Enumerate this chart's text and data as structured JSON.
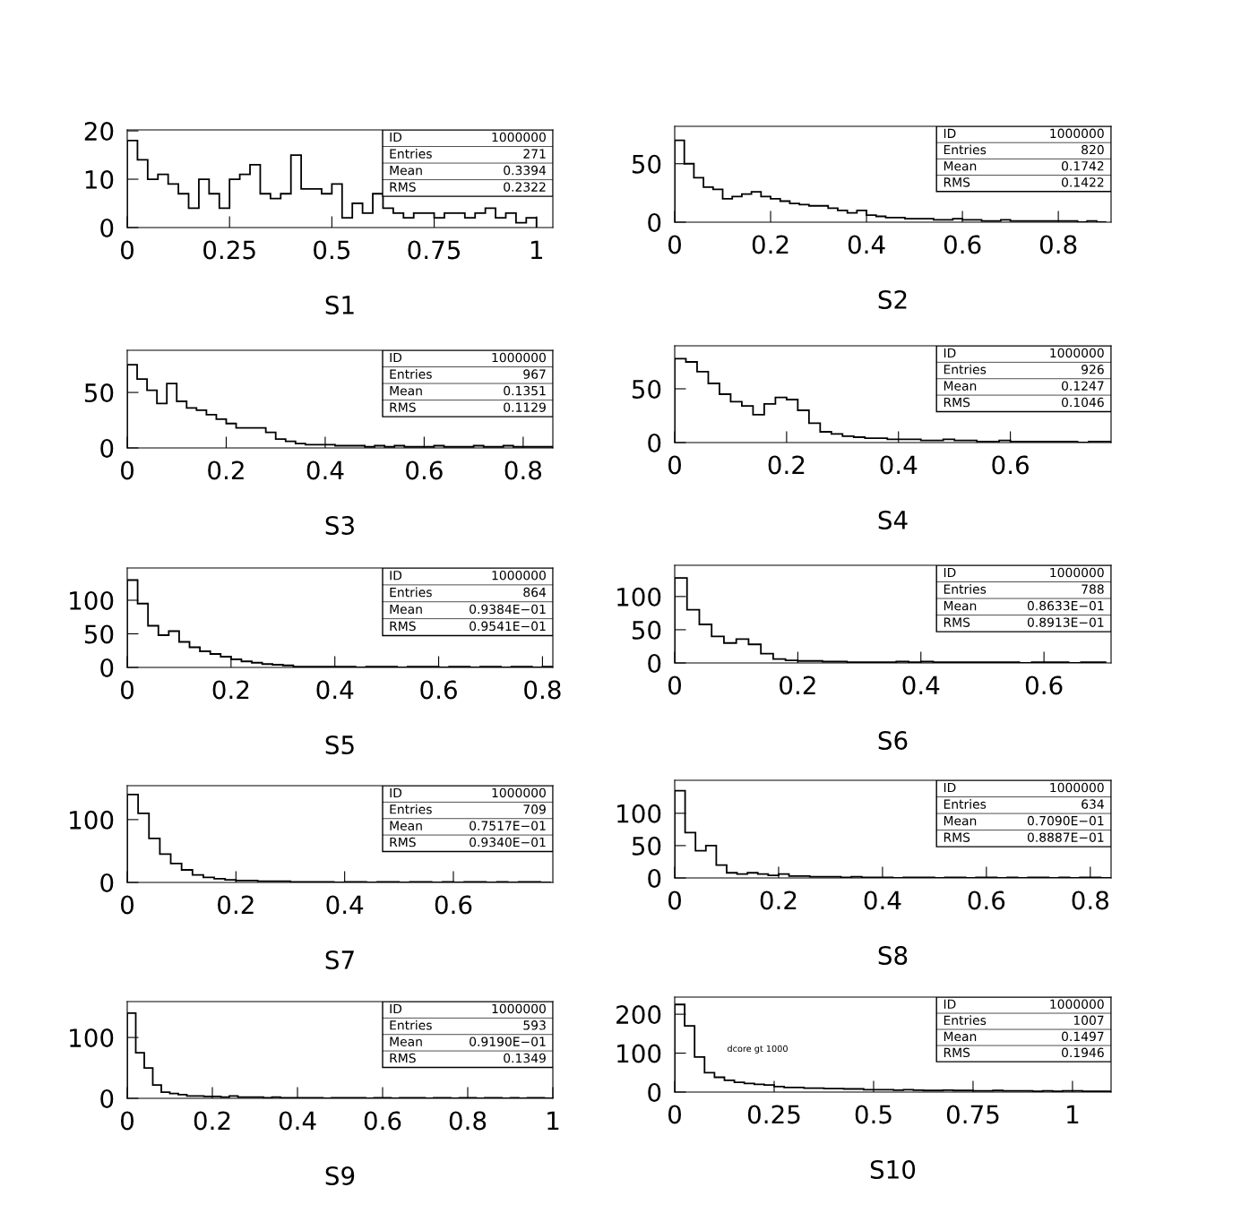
{
  "chart_data": [
    {
      "type": "histogram",
      "xlabel": "S1",
      "color": "#000000",
      "xlim": [
        0,
        1.04
      ],
      "ylim": [
        0,
        20.2
      ],
      "xticks": [
        0,
        0.25,
        0.5,
        0.75,
        1
      ],
      "yticks": [
        0,
        10,
        20
      ],
      "grid": false,
      "annotations": [
        "ID",
        "1000000",
        "Entries",
        "271",
        "Mean",
        "0.3394",
        "RMS",
        "0.2322"
      ],
      "bins": [
        0,
        0.025,
        0.05,
        0.075,
        0.1,
        0.125,
        0.15,
        0.175,
        0.2,
        0.225,
        0.25,
        0.275,
        0.3,
        0.325,
        0.35,
        0.375,
        0.4,
        0.425,
        0.45,
        0.475,
        0.5,
        0.525,
        0.55,
        0.575,
        0.6,
        0.625,
        0.65,
        0.675,
        0.7,
        0.725,
        0.75,
        0.775,
        0.8,
        0.825,
        0.85,
        0.875,
        0.9,
        0.925,
        0.95,
        0.975,
        1.0
      ],
      "values": [
        18,
        14,
        10,
        11,
        9,
        7,
        4,
        10,
        7,
        4,
        10,
        11,
        13,
        7,
        6,
        7,
        15,
        8,
        8,
        7,
        9,
        2,
        5,
        3,
        7,
        4,
        3,
        2,
        3,
        3,
        2,
        3,
        3,
        2,
        3,
        4,
        2,
        3,
        1,
        2
      ]
    },
    {
      "type": "histogram",
      "xlabel": "S2",
      "color": "#000000",
      "xlim": [
        0,
        0.91
      ],
      "ylim": [
        0,
        82
      ],
      "xticks": [
        0,
        0.2,
        0.4,
        0.6,
        0.8
      ],
      "yticks": [
        0,
        50
      ],
      "grid": false,
      "annotations": [
        "ID",
        "1000000",
        "Entries",
        "820",
        "Mean",
        "0.1742",
        "RMS",
        "0.1422"
      ],
      "bins": [
        0,
        0.02,
        0.04,
        0.06,
        0.08,
        0.1,
        0.12,
        0.14,
        0.16,
        0.18,
        0.2,
        0.22,
        0.24,
        0.26,
        0.28,
        0.3,
        0.32,
        0.34,
        0.36,
        0.38,
        0.4,
        0.42,
        0.44,
        0.46,
        0.48,
        0.5,
        0.52,
        0.54,
        0.56,
        0.58,
        0.6,
        0.62,
        0.64,
        0.66,
        0.68,
        0.7,
        0.72,
        0.74,
        0.76,
        0.78,
        0.8,
        0.82,
        0.84,
        0.86,
        0.88,
        0.9
      ],
      "values": [
        70,
        50,
        38,
        30,
        28,
        20,
        22,
        24,
        26,
        22,
        20,
        18,
        16,
        15,
        14,
        14,
        12,
        10,
        8,
        10,
        6,
        5,
        4,
        4,
        3,
        3,
        3,
        2,
        2,
        3,
        2,
        2,
        1,
        1,
        2,
        1,
        1,
        1,
        1,
        1,
        1,
        1,
        0,
        1,
        0
      ]
    },
    {
      "type": "histogram",
      "xlabel": "S3",
      "color": "#000000",
      "xlim": [
        0,
        0.86
      ],
      "ylim": [
        0,
        88
      ],
      "xticks": [
        0,
        0.2,
        0.4,
        0.6,
        0.8
      ],
      "yticks": [
        0,
        50
      ],
      "grid": false,
      "annotations": [
        "ID",
        "1000000",
        "Entries",
        "967",
        "Mean",
        "0.1351",
        "RMS",
        "0.1129"
      ],
      "bins": [
        0,
        0.02,
        0.04,
        0.06,
        0.08,
        0.1,
        0.12,
        0.14,
        0.16,
        0.18,
        0.2,
        0.22,
        0.24,
        0.26,
        0.28,
        0.3,
        0.32,
        0.34,
        0.36,
        0.38,
        0.4,
        0.42,
        0.44,
        0.46,
        0.48,
        0.5,
        0.52,
        0.54,
        0.56,
        0.58,
        0.6,
        0.62,
        0.64,
        0.66,
        0.68,
        0.7,
        0.72,
        0.74,
        0.76,
        0.78,
        0.8,
        0.82,
        0.84,
        0.86
      ],
      "values": [
        75,
        62,
        52,
        40,
        58,
        42,
        36,
        34,
        30,
        26,
        22,
        18,
        18,
        18,
        14,
        8,
        6,
        4,
        3,
        3,
        3,
        2,
        2,
        2,
        1,
        2,
        1,
        2,
        1,
        1,
        1,
        2,
        1,
        1,
        1,
        2,
        1,
        1,
        2,
        1,
        1,
        1,
        1
      ]
    },
    {
      "type": "histogram",
      "xlabel": "S4",
      "color": "#000000",
      "xlim": [
        0,
        0.78
      ],
      "ylim": [
        0,
        90
      ],
      "xticks": [
        0,
        0.2,
        0.4,
        0.6
      ],
      "yticks": [
        0,
        50
      ],
      "grid": false,
      "annotations": [
        "ID",
        "1000000",
        "Entries",
        "926",
        "Mean",
        "0.1247",
        "RMS",
        "0.1046"
      ],
      "bins": [
        0,
        0.02,
        0.04,
        0.06,
        0.08,
        0.1,
        0.12,
        0.14,
        0.16,
        0.18,
        0.2,
        0.22,
        0.24,
        0.26,
        0.28,
        0.3,
        0.32,
        0.34,
        0.36,
        0.38,
        0.4,
        0.42,
        0.44,
        0.46,
        0.48,
        0.5,
        0.52,
        0.54,
        0.56,
        0.58,
        0.6,
        0.62,
        0.64,
        0.66,
        0.68,
        0.7,
        0.72,
        0.74,
        0.76,
        0.78
      ],
      "values": [
        78,
        75,
        66,
        55,
        45,
        38,
        34,
        26,
        36,
        42,
        40,
        30,
        18,
        10,
        8,
        6,
        5,
        4,
        4,
        3,
        3,
        3,
        2,
        2,
        3,
        2,
        2,
        1,
        1,
        2,
        1,
        1,
        1,
        1,
        1,
        1,
        0,
        1,
        1
      ]
    },
    {
      "type": "histogram",
      "xlabel": "S5",
      "color": "#000000",
      "xlim": [
        0,
        0.82
      ],
      "ylim": [
        0,
        148
      ],
      "xticks": [
        0,
        0.2,
        0.4,
        0.6,
        0.8
      ],
      "yticks": [
        0,
        50,
        100
      ],
      "grid": false,
      "annotations": [
        "ID",
        "1000000",
        "Entries",
        "864",
        "Mean",
        "0.9384E−01",
        "RMS",
        "0.9541E−01"
      ],
      "bins": [
        0,
        0.02,
        0.04,
        0.06,
        0.08,
        0.1,
        0.12,
        0.14,
        0.16,
        0.18,
        0.2,
        0.22,
        0.24,
        0.26,
        0.28,
        0.3,
        0.32,
        0.34,
        0.36,
        0.38,
        0.4,
        0.42,
        0.44,
        0.46,
        0.48,
        0.5,
        0.52,
        0.54,
        0.56,
        0.58,
        0.6,
        0.62,
        0.64,
        0.66,
        0.68,
        0.7,
        0.72,
        0.74,
        0.76,
        0.78,
        0.8,
        0.82
      ],
      "values": [
        130,
        95,
        62,
        48,
        54,
        38,
        30,
        24,
        20,
        16,
        12,
        9,
        7,
        5,
        4,
        3,
        1,
        1,
        1,
        1,
        1,
        1,
        0,
        1,
        1,
        1,
        0,
        1,
        1,
        1,
        0,
        1,
        1,
        0,
        1,
        1,
        0,
        1,
        1,
        0,
        1
      ]
    },
    {
      "type": "histogram",
      "xlabel": "S6",
      "color": "#000000",
      "xlim": [
        0,
        0.709
      ],
      "ylim": [
        0,
        147
      ],
      "xticks": [
        0,
        0.2,
        0.4,
        0.6
      ],
      "yticks": [
        0,
        50,
        100
      ],
      "grid": false,
      "annotations": [
        "ID",
        "1000000",
        "Entries",
        "788",
        "Mean",
        "0.8633E−01",
        "RMS",
        "0.8913E−01"
      ],
      "bins": [
        0,
        0.02,
        0.04,
        0.06,
        0.08,
        0.1,
        0.12,
        0.14,
        0.16,
        0.18,
        0.2,
        0.22,
        0.24,
        0.26,
        0.28,
        0.3,
        0.32,
        0.34,
        0.36,
        0.38,
        0.4,
        0.42,
        0.44,
        0.46,
        0.48,
        0.5,
        0.52,
        0.54,
        0.56,
        0.58,
        0.6,
        0.62,
        0.64,
        0.66,
        0.68,
        0.7
      ],
      "values": [
        128,
        80,
        58,
        40,
        30,
        36,
        28,
        14,
        6,
        4,
        3,
        3,
        2,
        2,
        1,
        1,
        1,
        1,
        2,
        1,
        2,
        1,
        1,
        1,
        1,
        1,
        1,
        1,
        0,
        1,
        1,
        1,
        0,
        1,
        1
      ]
    },
    {
      "type": "histogram",
      "xlabel": "S7",
      "color": "#000000",
      "xlim": [
        0,
        0.783
      ],
      "ylim": [
        0,
        154
      ],
      "xticks": [
        0,
        0.2,
        0.4,
        0.6
      ],
      "yticks": [
        0,
        100
      ],
      "grid": false,
      "annotations": [
        "ID",
        "1000000",
        "Entries",
        "709",
        "Mean",
        "0.7517E−01",
        "RMS",
        "0.9340E−01"
      ],
      "bins": [
        0,
        0.02,
        0.04,
        0.06,
        0.08,
        0.1,
        0.12,
        0.14,
        0.16,
        0.18,
        0.2,
        0.22,
        0.24,
        0.26,
        0.28,
        0.3,
        0.32,
        0.34,
        0.36,
        0.38,
        0.4,
        0.42,
        0.44,
        0.46,
        0.48,
        0.5,
        0.52,
        0.54,
        0.56,
        0.58,
        0.6,
        0.62,
        0.64,
        0.66,
        0.68,
        0.7,
        0.72,
        0.74,
        0.76,
        0.78
      ],
      "values": [
        140,
        110,
        70,
        45,
        30,
        20,
        12,
        8,
        6,
        4,
        3,
        3,
        2,
        2,
        2,
        1,
        1,
        1,
        1,
        0,
        1,
        1,
        0,
        1,
        1,
        0,
        1,
        1,
        0,
        1,
        0,
        1,
        1,
        0,
        1,
        0,
        1,
        1,
        0
      ]
    },
    {
      "type": "histogram",
      "xlabel": "S8",
      "color": "#000000",
      "xlim": [
        0,
        0.84
      ],
      "ylim": [
        0,
        151
      ],
      "xticks": [
        0,
        0.2,
        0.4,
        0.6,
        0.8
      ],
      "yticks": [
        0,
        50,
        100
      ],
      "grid": false,
      "annotations": [
        "ID",
        "1000000",
        "Entries",
        "634",
        "Mean",
        "0.7090E−01",
        "RMS",
        "0.8887E−01"
      ],
      "bins": [
        0,
        0.02,
        0.04,
        0.06,
        0.08,
        0.1,
        0.12,
        0.14,
        0.16,
        0.18,
        0.2,
        0.22,
        0.24,
        0.26,
        0.28,
        0.3,
        0.32,
        0.34,
        0.36,
        0.38,
        0.4,
        0.42,
        0.44,
        0.46,
        0.48,
        0.5,
        0.52,
        0.54,
        0.56,
        0.58,
        0.6,
        0.62,
        0.64,
        0.66,
        0.68,
        0.7,
        0.72,
        0.74,
        0.76,
        0.78,
        0.8,
        0.82,
        0.84
      ],
      "values": [
        135,
        70,
        42,
        50,
        20,
        8,
        6,
        8,
        6,
        4,
        6,
        3,
        3,
        2,
        2,
        2,
        1,
        2,
        1,
        1,
        1,
        0,
        1,
        1,
        1,
        0,
        1,
        1,
        0,
        1,
        1,
        0,
        1,
        0,
        1,
        1,
        0,
        1,
        0,
        1,
        1,
        0
      ]
    },
    {
      "type": "histogram",
      "xlabel": "S9",
      "color": "#000000",
      "xlim": [
        0,
        1
      ],
      "ylim": [
        0,
        159
      ],
      "xticks": [
        0,
        0.2,
        0.4,
        0.6,
        0.8,
        1
      ],
      "yticks": [
        0,
        100
      ],
      "grid": false,
      "annotations": [
        "ID",
        "1000000",
        "Entries",
        "593",
        "Mean",
        "0.9190E−01",
        "RMS",
        "0.1349"
      ],
      "bins": [
        0,
        0.02,
        0.04,
        0.06,
        0.08,
        0.1,
        0.12,
        0.14,
        0.16,
        0.18,
        0.2,
        0.22,
        0.24,
        0.26,
        0.28,
        0.3,
        0.32,
        0.34,
        0.36,
        0.38,
        0.4,
        0.42,
        0.44,
        0.46,
        0.48,
        0.5,
        0.52,
        0.54,
        0.56,
        0.58,
        0.6,
        0.62,
        0.64,
        0.66,
        0.68,
        0.7,
        0.72,
        0.74,
        0.76,
        0.78,
        0.8,
        0.82,
        0.84,
        0.86,
        0.88,
        0.9,
        0.92,
        0.94,
        0.96,
        0.98,
        1.0
      ],
      "values": [
        140,
        75,
        50,
        22,
        10,
        8,
        6,
        4,
        4,
        3,
        3,
        2,
        4,
        2,
        2,
        2,
        1,
        2,
        1,
        1,
        1,
        1,
        1,
        0,
        1,
        1,
        1,
        1,
        0,
        1,
        1,
        0,
        1,
        1,
        1,
        0,
        1,
        1,
        0,
        1,
        1,
        0,
        1,
        1,
        0,
        1,
        0,
        1,
        1,
        0
      ]
    },
    {
      "type": "histogram",
      "xlabel": "S10",
      "color": "#000000",
      "xlim": [
        0,
        1.097
      ],
      "ylim": [
        0,
        244
      ],
      "xticks": [
        0,
        0.25,
        0.5,
        0.75,
        1
      ],
      "yticks": [
        0,
        100,
        200
      ],
      "grid": false,
      "annotations": [
        "ID",
        "1000000",
        "Entries",
        "1007",
        "Mean",
        "0.1497",
        "RMS",
        "0.1946",
        "dcore gt 1000"
      ],
      "bins": [
        0,
        0.025,
        0.05,
        0.075,
        0.1,
        0.125,
        0.15,
        0.175,
        0.2,
        0.225,
        0.25,
        0.275,
        0.3,
        0.325,
        0.35,
        0.375,
        0.4,
        0.425,
        0.45,
        0.475,
        0.5,
        0.525,
        0.55,
        0.575,
        0.6,
        0.625,
        0.65,
        0.675,
        0.7,
        0.725,
        0.75,
        0.775,
        0.8,
        0.825,
        0.85,
        0.875,
        0.9,
        0.925,
        0.95,
        0.975,
        1.0,
        1.025,
        1.05,
        1.075,
        1.1
      ],
      "values": [
        225,
        170,
        90,
        50,
        38,
        30,
        25,
        22,
        20,
        18,
        14,
        12,
        12,
        10,
        10,
        9,
        9,
        8,
        8,
        6,
        6,
        6,
        5,
        6,
        5,
        4,
        4,
        5,
        4,
        4,
        3,
        3,
        4,
        3,
        3,
        3,
        2,
        3,
        2,
        3,
        3,
        2,
        2,
        2
      ]
    }
  ]
}
